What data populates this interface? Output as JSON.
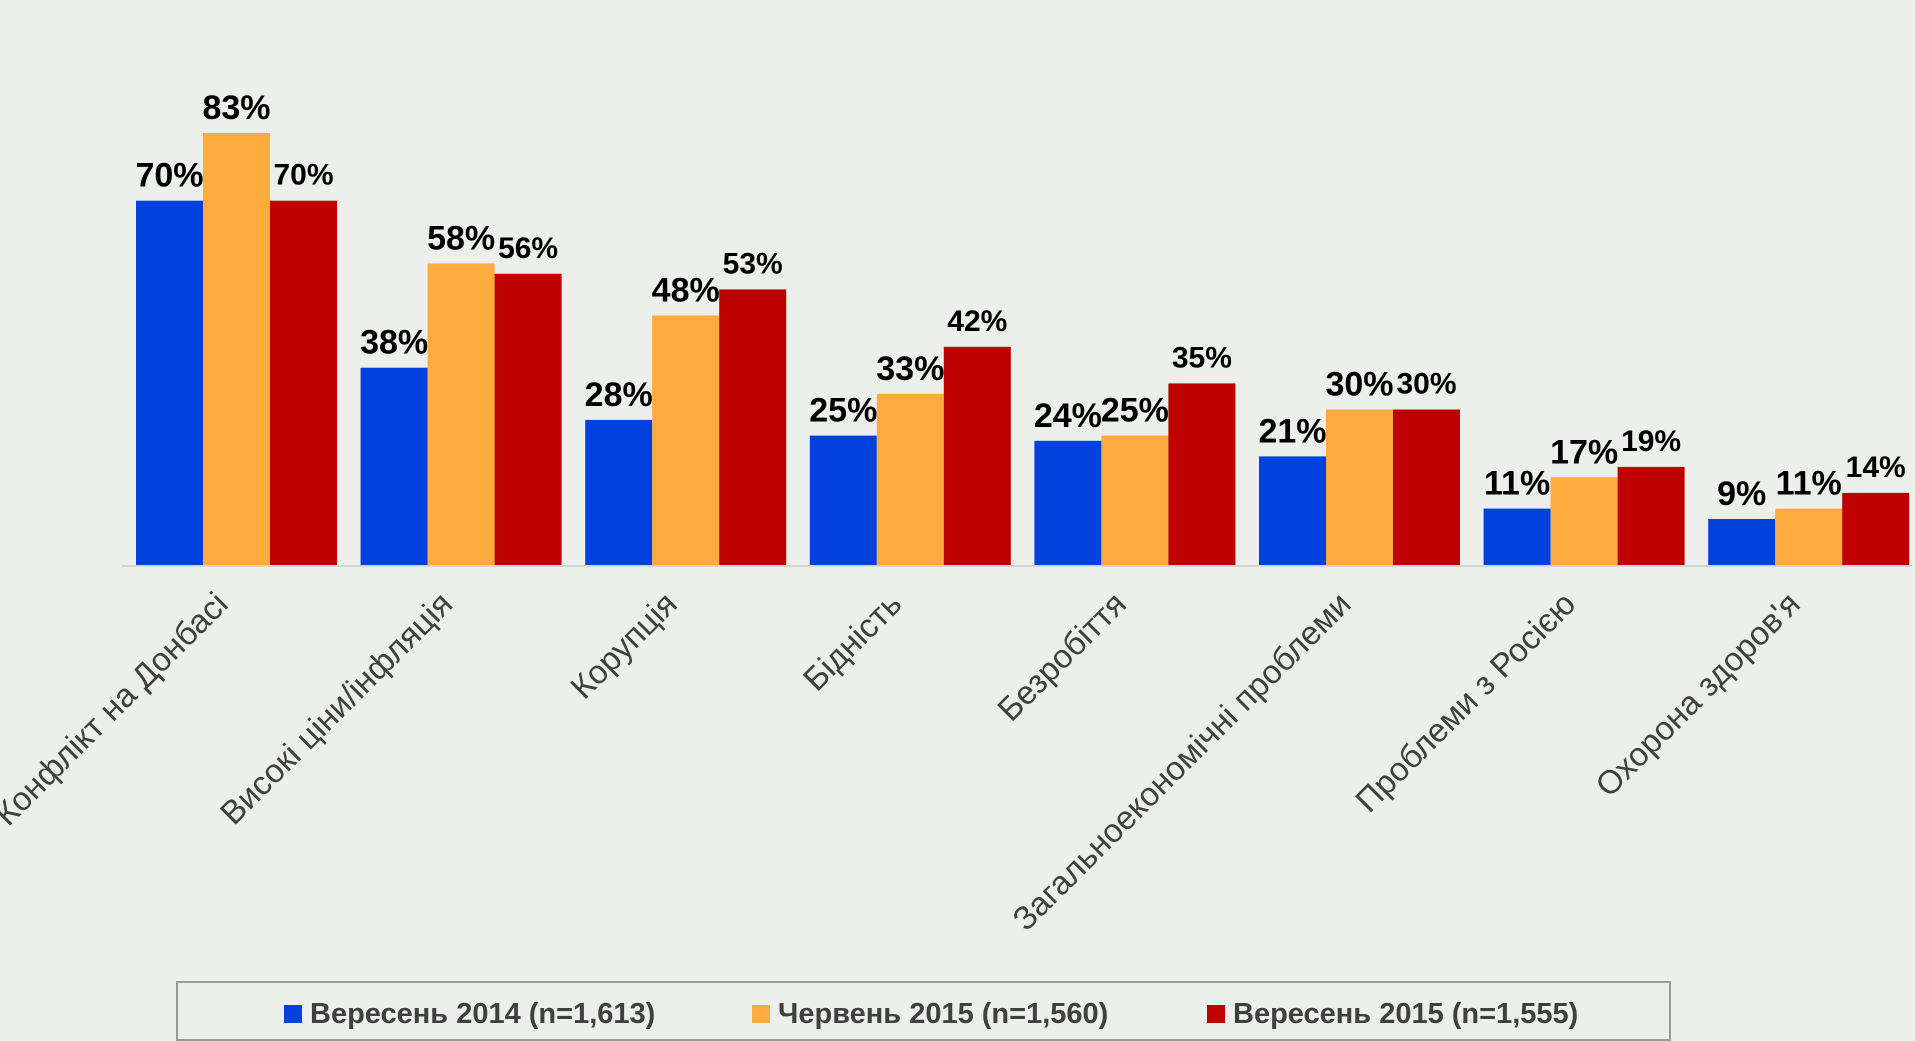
{
  "chart_data": {
    "type": "bar",
    "categories": [
      "Конфлікт на Донбасі",
      "Високі ціни/інфляція",
      "Корупція",
      "Бідність",
      "Безробіття",
      "Загальноекономічні проблеми",
      "Проблеми з Росією",
      "Охорона здоров'я"
    ],
    "series": [
      {
        "name": "Вересень 2014 (n=1,613)",
        "color": "#0341df",
        "values": [
          70,
          38,
          28,
          25,
          24,
          21,
          11,
          9
        ],
        "labels": [
          "70%",
          "38%",
          "28%",
          "25%",
          "24%",
          "21%",
          "11%",
          "9%"
        ]
      },
      {
        "name": "Червень 2015 (n=1,560)",
        "color": "#fcab3c",
        "values": [
          83,
          58,
          48,
          33,
          25,
          30,
          17,
          11
        ],
        "labels": [
          "83%",
          "58%",
          "48%",
          "33%",
          "25%",
          "30%",
          "17%",
          "11%"
        ]
      },
      {
        "name": "Вересень  2015 (n=1,555)",
        "color": "#be0000",
        "values": [
          70,
          56,
          53,
          42,
          35,
          30,
          19,
          14
        ],
        "labels": [
          "70%",
          "56%",
          "53%",
          "42%",
          "35%",
          "30%",
          "19%",
          "14%"
        ]
      }
    ],
    "ylim": [
      0,
      100
    ],
    "grid": false,
    "legend_position": "bottom"
  }
}
